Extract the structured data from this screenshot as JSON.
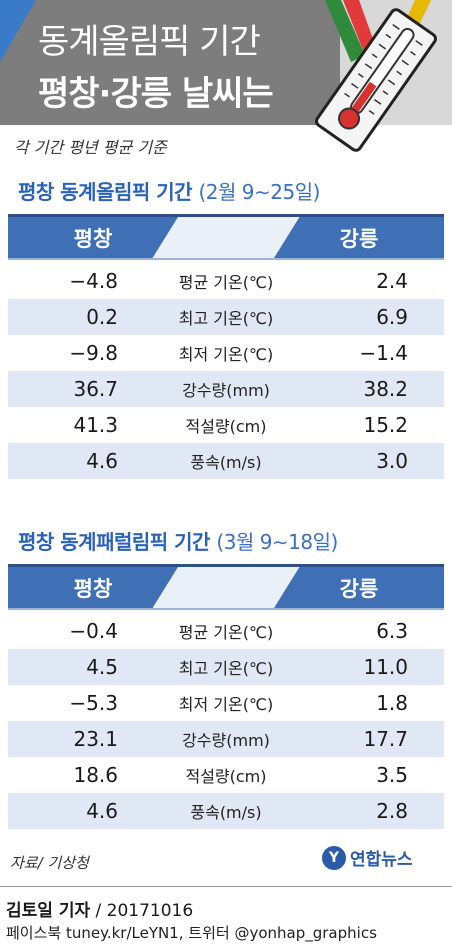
{
  "header": {
    "title_line1": "동계올림픽 기간",
    "title_line2": "평창·강릉 날씨는"
  },
  "basis_note": "각 기간 평년 평균 기준",
  "chart_data": [
    {
      "type": "table",
      "title": "평창 동계올림픽 기간",
      "period": "(2월 9∼25일)",
      "columns": [
        "평창",
        "강릉"
      ],
      "rows": [
        {
          "label": "평균 기온(℃)",
          "pyeongchang": "−4.8",
          "gangneung": "2.4"
        },
        {
          "label": "최고 기온(℃)",
          "pyeongchang": "0.2",
          "gangneung": "6.9"
        },
        {
          "label": "최저 기온(℃)",
          "pyeongchang": "−9.8",
          "gangneung": "−1.4"
        },
        {
          "label": "강수량(mm)",
          "pyeongchang": "36.7",
          "gangneung": "38.2"
        },
        {
          "label": "적설량(cm)",
          "pyeongchang": "41.3",
          "gangneung": "15.2"
        },
        {
          "label": "풍속(m/s)",
          "pyeongchang": "4.6",
          "gangneung": "3.0"
        }
      ]
    },
    {
      "type": "table",
      "title": "평창 동계패럴림픽 기간",
      "period": "(3월 9∼18일)",
      "columns": [
        "평창",
        "강릉"
      ],
      "rows": [
        {
          "label": "평균 기온(℃)",
          "pyeongchang": "−0.4",
          "gangneung": "6.3"
        },
        {
          "label": "최고 기온(℃)",
          "pyeongchang": "4.5",
          "gangneung": "11.0"
        },
        {
          "label": "최저 기온(℃)",
          "pyeongchang": "−5.3",
          "gangneung": "1.8"
        },
        {
          "label": "강수량(mm)",
          "pyeongchang": "23.1",
          "gangneung": "17.7"
        },
        {
          "label": "적설량(cm)",
          "pyeongchang": "18.6",
          "gangneung": "3.5"
        },
        {
          "label": "풍속(m/s)",
          "pyeongchang": "4.6",
          "gangneung": "2.8"
        }
      ]
    }
  ],
  "source": "자료/ 기상청",
  "logo": {
    "mark": "Y",
    "name": "연합뉴스"
  },
  "credit": {
    "author": "김토일 기자",
    "date": " / 20171016",
    "social": "페이스북 tuney.kr/LeYN1, 트위터 @yonhap_graphics"
  },
  "colors": {
    "accent_blue": "#3f6fb4",
    "header_gray": "#7d7d7d",
    "row_shade": "#dfe8f4",
    "title_blue": "#2a62b8"
  },
  "icons": [
    "thermometer-icon",
    "olympic-ribbon-icon"
  ]
}
